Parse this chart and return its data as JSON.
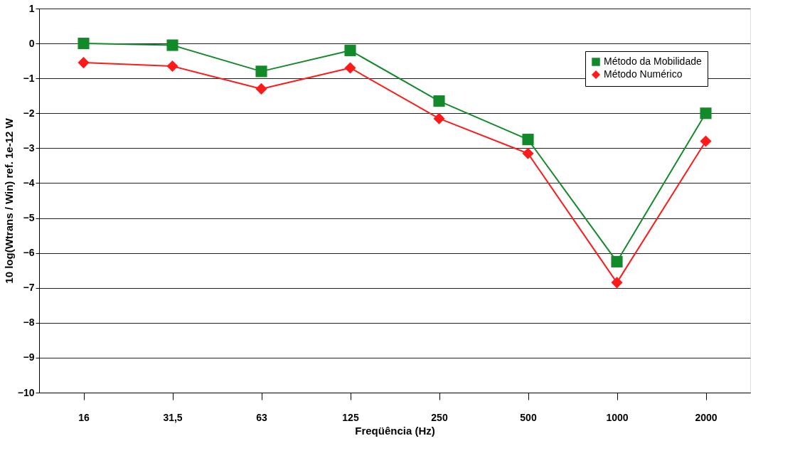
{
  "chart_data": {
    "type": "line",
    "xlabel": "Freqüência (Hz)",
    "ylabel": "10 log(Wtrans / Win) ref. 1e-12 W",
    "categories": [
      "16",
      "31,5",
      "63",
      "125",
      "250",
      "500",
      "1000",
      "2000"
    ],
    "series": [
      {
        "name": "Método da Mobilidade",
        "color": "#138a2a",
        "marker": "square",
        "values": [
          0,
          -0.05,
          -0.8,
          -0.2,
          -1.65,
          -2.75,
          -6.25,
          -2.0
        ]
      },
      {
        "name": "Método Numérico",
        "color": "#ff1a1a",
        "marker": "diamond",
        "values": [
          -0.55,
          -0.65,
          -1.3,
          -0.7,
          -2.15,
          -3.15,
          -6.85,
          -2.8
        ]
      }
    ],
    "ylim": [
      -10,
      1
    ],
    "yticks": [
      -10,
      -9,
      -8,
      -7,
      -6,
      -5,
      -4,
      -3,
      -2,
      -1,
      0,
      1
    ],
    "grid": "y",
    "legend": "top right",
    "line_style": "solid"
  }
}
